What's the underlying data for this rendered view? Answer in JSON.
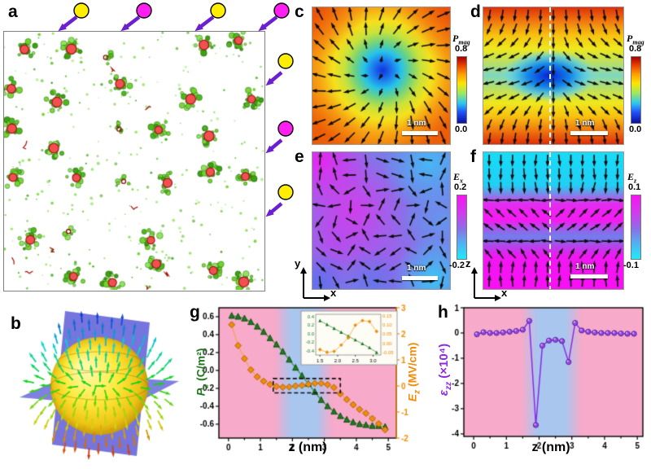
{
  "colors": {
    "pink_region": "#f7aac9",
    "blue_region": "#a9c6ef",
    "pz_green": "#1f7a1f",
    "pz_green_line": "#4a8f4a",
    "ez_orange": "#f08c0a",
    "ez_orange_line": "#f5a43c",
    "ezz_violet": "#8a2be2",
    "ezz_marker": "#9a4ae8",
    "arrow_purple": "#6a1fd0",
    "defect_yellow": "#ffee00",
    "defect_magenta": "#ff1ff0",
    "cluster_green": "#5cc832",
    "core_red": "#f25050"
  },
  "panels": {
    "a": {
      "label": "a",
      "top_markers": [
        {
          "color": "yellow",
          "x": 100
        },
        {
          "color": "magenta",
          "x": 177
        },
        {
          "color": "yellow",
          "x": 268
        },
        {
          "color": "magenta",
          "x": 346
        }
      ],
      "right_markers": [
        {
          "color": "yellow",
          "y": 75
        },
        {
          "color": "magenta",
          "y": 158
        },
        {
          "color": "yellow",
          "y": 236
        }
      ]
    },
    "b": {
      "label": "b"
    },
    "c": {
      "label": "c",
      "colorbar": {
        "sym": "P",
        "sub": "mag",
        "max": "0.8",
        "min": "0.0"
      },
      "scalebar": "1 nm"
    },
    "d": {
      "label": "d",
      "colorbar": {
        "sym": "P",
        "sub": "mag",
        "max": "0.8",
        "min": "0.0"
      },
      "scalebar": "1 nm"
    },
    "e": {
      "label": "e",
      "colorbar": {
        "sym": "E",
        "sub": "x",
        "max": "0.2",
        "min": "-0.2"
      },
      "scalebar": "1 nm",
      "axis_v": "y",
      "axis_h": "x"
    },
    "f": {
      "label": "f",
      "colorbar": {
        "sym": "E",
        "sub": "z",
        "max": "0.1",
        "min": "-0.1"
      },
      "scalebar": "1 nm",
      "axis_v": "z",
      "axis_h": "x"
    },
    "g": {
      "label": "g",
      "xlabel": "z (nm)",
      "ylabel_left": {
        "sym": "P",
        "sub": "z",
        "rest": " (C/m²)"
      },
      "ylabel_right": {
        "sym": "E",
        "sub": "z",
        "rest": " (MV/cm)"
      }
    },
    "h": {
      "label": "h",
      "xlabel": "z (nm)",
      "ylabel": {
        "sym": "ε",
        "sub": "zz",
        "rest": " (×10⁴)"
      }
    }
  },
  "chart_data": [
    {
      "id": "g-main",
      "type": "line",
      "xlabel": "z (nm)",
      "ylabel_left": "Pz (C/m2)",
      "ylabel_right": "Ez (MV/cm)",
      "xlim": [
        -0.3,
        5.25
      ],
      "ylim_left": [
        -0.755,
        0.7
      ],
      "ylim_right": [
        -2,
        3
      ],
      "xticks": {
        "v": [
          0,
          1,
          2,
          3,
          4,
          5
        ],
        "t": [
          "0",
          "1",
          "2",
          "3",
          "4",
          "5"
        ]
      },
      "yticks_left": {
        "v": [
          0.6,
          0.4,
          0.2,
          0.0,
          -0.2,
          -0.4,
          -0.6
        ],
        "t": [
          "0.6",
          "0.4",
          "0.2",
          "0.0",
          "-0.2",
          "-0.4",
          "-0.6"
        ]
      },
      "yticks_right": {
        "v": [
          3,
          2,
          1,
          0,
          -1,
          -2
        ],
        "t": [
          "3",
          "2",
          "1",
          "0",
          "-1",
          "-2"
        ]
      },
      "blue_band_z": [
        1.7,
        3.0
      ],
      "dashed_box": {
        "x": [
          1.4,
          3.5
        ],
        "y_left": [
          -0.25,
          -0.09
        ]
      },
      "x": [
        0.1,
        0.3,
        0.5,
        0.7,
        0.9,
        1.1,
        1.3,
        1.5,
        1.7,
        1.9,
        2.1,
        2.3,
        2.5,
        2.7,
        2.9,
        3.1,
        3.3,
        3.5,
        3.7,
        3.9,
        4.1,
        4.3,
        4.5,
        4.7,
        4.9
      ],
      "series": [
        {
          "name": "Pz",
          "axis": "left",
          "marker": "triangle",
          "values": [
            0.61,
            0.6,
            0.58,
            0.54,
            0.49,
            0.43,
            0.36,
            0.29,
            0.21,
            0.12,
            0.03,
            -0.06,
            -0.15,
            -0.24,
            -0.33,
            -0.4,
            -0.46,
            -0.51,
            -0.55,
            -0.58,
            -0.6,
            -0.61,
            -0.62,
            -0.62,
            -0.63
          ]
        },
        {
          "name": "Ez",
          "axis": "right",
          "marker": "diamond",
          "values": [
            2.35,
            1.55,
            1.05,
            0.62,
            0.35,
            0.18,
            0.06,
            -0.02,
            -0.05,
            -0.04,
            0.0,
            0.02,
            0.06,
            0.1,
            0.1,
            0.05,
            -0.06,
            -0.3,
            -0.52,
            -0.72,
            -0.9,
            -1.05,
            -1.25,
            -1.45,
            -1.68
          ]
        }
      ]
    },
    {
      "id": "g-inset",
      "type": "line",
      "xlim": [
        1.38,
        3.22
      ],
      "ylim_left": [
        -0.5,
        0.45
      ],
      "ylim_right": [
        -0.065,
        0.16
      ],
      "xticks": {
        "v": [
          1.5,
          2.0,
          2.5,
          3.0
        ],
        "t": [
          "1.5",
          "2.0",
          "2.5",
          "3.0"
        ]
      },
      "yticks_left": {
        "v": [
          0.4,
          0.2,
          0.0,
          -0.2,
          -0.4
        ],
        "t": [
          "0.4",
          "0.2",
          "0.0",
          "-0.2",
          "-0.4"
        ]
      },
      "yticks_right": {
        "v": [
          0.15,
          0.1,
          0.05,
          0.0,
          -0.05
        ],
        "t": [
          "0.15",
          "0.10",
          "0.05",
          "0.00",
          "-0.05"
        ]
      },
      "x": [
        1.5,
        1.7,
        1.9,
        2.1,
        2.3,
        2.5,
        2.7,
        2.9,
        3.1
      ],
      "series": [
        {
          "name": "Pz",
          "axis": "left",
          "marker": "triangle",
          "values": [
            0.3,
            0.21,
            0.12,
            0.03,
            -0.06,
            -0.15,
            -0.24,
            -0.33,
            -0.44
          ]
        },
        {
          "name": "Ez",
          "axis": "right",
          "marker": "diamond",
          "values": [
            -0.035,
            -0.05,
            -0.045,
            -0.01,
            0.03,
            0.1,
            0.125,
            0.12,
            0.065
          ]
        }
      ]
    },
    {
      "id": "h-main",
      "type": "line",
      "xlabel": "z (nm)",
      "ylabel": "εzz (×10⁴)",
      "xlim": [
        -0.3,
        5.17
      ],
      "ylim": [
        -4.1,
        1.0
      ],
      "xticks": {
        "v": [
          0,
          1,
          2,
          3,
          4,
          5
        ],
        "t": [
          "0",
          "1",
          "2",
          "3",
          "4",
          "5"
        ]
      },
      "yticks": {
        "v": [
          1,
          0,
          -1,
          -2,
          -3,
          -4
        ],
        "t": [
          "1",
          "0",
          "-1",
          "-2",
          "-3",
          "-4"
        ]
      },
      "blue_band_z": [
        1.7,
        3.05
      ],
      "x": [
        0.1,
        0.3,
        0.5,
        0.7,
        0.9,
        1.1,
        1.3,
        1.5,
        1.7,
        1.9,
        2.1,
        2.3,
        2.5,
        2.7,
        2.9,
        3.1,
        3.3,
        3.5,
        3.7,
        3.9,
        4.1,
        4.3,
        4.5,
        4.7,
        4.9
      ],
      "series": [
        {
          "name": "εzz",
          "marker": "sphere",
          "values": [
            -0.05,
            0.03,
            0.0,
            0.0,
            0.02,
            0.05,
            0.08,
            0.13,
            0.48,
            -3.65,
            -0.5,
            -0.3,
            -0.27,
            -0.32,
            -1.15,
            0.4,
            0.1,
            0.05,
            0.02,
            0.0,
            0.0,
            0.0,
            -0.02,
            -0.03,
            -0.03
          ]
        }
      ]
    }
  ]
}
